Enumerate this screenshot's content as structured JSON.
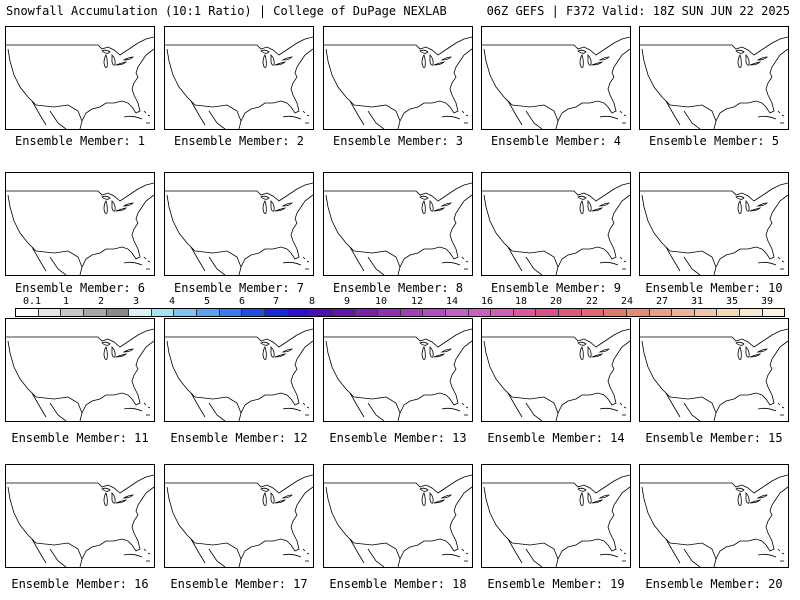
{
  "header": {
    "title_left": "Snowfall Accumulation (10:1 Ratio) | College of DuPage NEXLAB",
    "title_right": "06Z GEFS | F372 Valid: 18Z SUN JUN 22 2025"
  },
  "panels": [
    {
      "label": "Ensemble Member: 1"
    },
    {
      "label": "Ensemble Member: 2"
    },
    {
      "label": "Ensemble Member: 3"
    },
    {
      "label": "Ensemble Member: 4"
    },
    {
      "label": "Ensemble Member: 5"
    },
    {
      "label": "Ensemble Member: 6"
    },
    {
      "label": "Ensemble Member: 7"
    },
    {
      "label": "Ensemble Member: 8"
    },
    {
      "label": "Ensemble Member: 9"
    },
    {
      "label": "Ensemble Member: 10"
    },
    {
      "label": "Ensemble Member: 11"
    },
    {
      "label": "Ensemble Member: 12"
    },
    {
      "label": "Ensemble Member: 13"
    },
    {
      "label": "Ensemble Member: 14"
    },
    {
      "label": "Ensemble Member: 15"
    },
    {
      "label": "Ensemble Member: 16"
    },
    {
      "label": "Ensemble Member: 17"
    },
    {
      "label": "Ensemble Member: 18"
    },
    {
      "label": "Ensemble Member: 19"
    },
    {
      "label": "Ensemble Member: 20"
    }
  ],
  "colorbar": {
    "tick_labels": [
      "0.1",
      "1",
      "2",
      "3",
      "4",
      "5",
      "6",
      "7",
      "8",
      "9",
      "10",
      "12",
      "14",
      "16",
      "18",
      "20",
      "22",
      "24",
      "27",
      "31",
      "35",
      "39"
    ],
    "colors": [
      "#ffffff",
      "#e6e6e6",
      "#c8c8c8",
      "#a8a8a8",
      "#8a8a8a",
      "#d8f4f4",
      "#a8e0f0",
      "#7fc4f0",
      "#5aa0ee",
      "#3c78e8",
      "#2050e0",
      "#1a2ad8",
      "#3010c8",
      "#4a10b0",
      "#6018a8",
      "#7822a8",
      "#9030b0",
      "#a040b8",
      "#b050c0",
      "#c060c8",
      "#cc60c0",
      "#d060b0",
      "#d8589c",
      "#d85088",
      "#d85a78",
      "#dc6a70",
      "#e07a70",
      "#e48c78",
      "#e8a088",
      "#ecb498",
      "#f0c8a8",
      "#f4d8b8",
      "#f8e8d0",
      "#fcf4e4"
    ]
  }
}
